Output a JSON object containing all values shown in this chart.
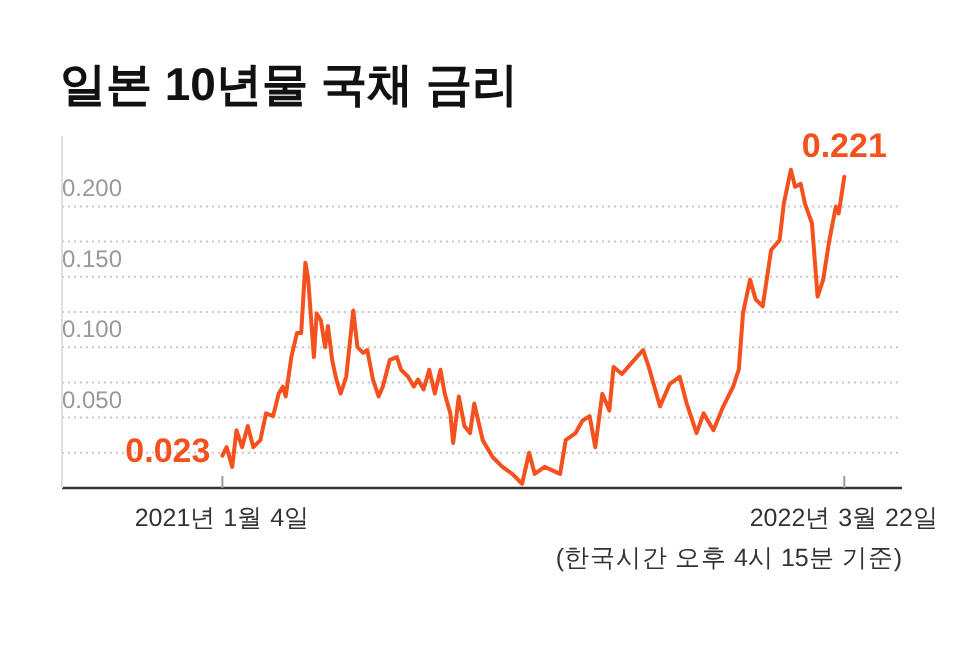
{
  "chart_data": {
    "type": "line",
    "title": "일본 10년물 국채 금리",
    "x": [
      "2021-01-04",
      "2021-01-07",
      "2021-01-11",
      "2021-01-14",
      "2021-01-18",
      "2021-01-22",
      "2021-01-26",
      "2021-01-31",
      "2021-02-04",
      "2021-02-09",
      "2021-02-13",
      "2021-02-16",
      "2021-02-18",
      "2021-02-22",
      "2021-02-26",
      "2021-03-01",
      "2021-03-04",
      "2021-03-06",
      "2021-03-10",
      "2021-03-12",
      "2021-03-15",
      "2021-03-18",
      "2021-03-20",
      "2021-03-23",
      "2021-03-26",
      "2021-03-29",
      "2021-04-02",
      "2021-04-07",
      "2021-04-10",
      "2021-04-14",
      "2021-04-17",
      "2021-04-21",
      "2021-04-25",
      "2021-04-28",
      "2021-05-03",
      "2021-05-08",
      "2021-05-11",
      "2021-05-16",
      "2021-05-20",
      "2021-05-23",
      "2021-05-27",
      "2021-05-31",
      "2021-06-04",
      "2021-06-08",
      "2021-06-11",
      "2021-06-15",
      "2021-06-17",
      "2021-06-21",
      "2021-06-25",
      "2021-06-29",
      "2021-07-02",
      "2021-07-08",
      "2021-07-15",
      "2021-07-22",
      "2021-07-29",
      "2021-08-05",
      "2021-08-10",
      "2021-08-14",
      "2021-08-21",
      "2021-09-01",
      "2021-09-05",
      "2021-09-12",
      "2021-09-17",
      "2021-09-22",
      "2021-09-26",
      "2021-10-01",
      "2021-10-06",
      "2021-10-09",
      "2021-10-15",
      "2021-10-22",
      "2021-10-30",
      "2021-11-03",
      "2021-11-11",
      "2021-11-18",
      "2021-11-25",
      "2021-11-30",
      "2021-12-07",
      "2021-12-12",
      "2021-12-19",
      "2021-12-26",
      "2022-01-02",
      "2022-01-06",
      "2022-01-09",
      "2022-01-14",
      "2022-01-18",
      "2022-01-23",
      "2022-01-29",
      "2022-02-04",
      "2022-02-07",
      "2022-02-12",
      "2022-02-15",
      "2022-02-19",
      "2022-02-22",
      "2022-02-27",
      "2022-03-03",
      "2022-03-07",
      "2022-03-11",
      "2022-03-16",
      "2022-03-18",
      "2022-03-22"
    ],
    "series": [
      {
        "color": "#f4511e",
        "values": [
          0.023,
          0.029,
          0.015,
          0.041,
          0.029,
          0.044,
          0.029,
          0.034,
          0.053,
          0.051,
          0.067,
          0.072,
          0.065,
          0.093,
          0.11,
          0.11,
          0.16,
          0.148,
          0.093,
          0.124,
          0.119,
          0.1,
          0.115,
          0.091,
          0.077,
          0.067,
          0.079,
          0.126,
          0.1,
          0.096,
          0.098,
          0.077,
          0.065,
          0.072,
          0.091,
          0.093,
          0.084,
          0.079,
          0.072,
          0.077,
          0.07,
          0.084,
          0.067,
          0.084,
          0.067,
          0.053,
          0.032,
          0.065,
          0.044,
          0.039,
          0.06,
          0.034,
          0.022,
          0.015,
          0.01,
          0.003,
          0.025,
          0.01,
          0.015,
          0.01,
          0.034,
          0.039,
          0.048,
          0.051,
          0.029,
          0.067,
          0.055,
          0.086,
          0.081,
          0.089,
          0.098,
          0.086,
          0.058,
          0.074,
          0.079,
          0.06,
          0.039,
          0.053,
          0.041,
          0.058,
          0.072,
          0.084,
          0.124,
          0.148,
          0.134,
          0.129,
          0.169,
          0.176,
          0.202,
          0.226,
          0.214,
          0.216,
          0.202,
          0.188,
          0.136,
          0.148,
          0.174,
          0.2,
          0.195,
          0.221
        ]
      }
    ],
    "xlim": [
      "2020-09-12",
      "2022-05-02"
    ],
    "xticks": [
      {
        "value": "2021-01-04",
        "label": "2021년 1월 4일"
      },
      {
        "value": "2022-03-22",
        "label": "2022년 3월 22일"
      }
    ],
    "ylim": [
      0,
      0.25
    ],
    "yticks": [
      {
        "value": 0.025,
        "label": null
      },
      {
        "value": 0.05,
        "label": "0.050"
      },
      {
        "value": 0.075,
        "label": null
      },
      {
        "value": 0.1,
        "label": "0.100"
      },
      {
        "value": 0.125,
        "label": null
      },
      {
        "value": 0.15,
        "label": "0.150"
      },
      {
        "value": 0.175,
        "label": null
      },
      {
        "value": 0.2,
        "label": "0.200"
      }
    ],
    "grid": "y",
    "marker": "none",
    "line_style": "solid",
    "annotations": [
      {
        "text": "0.023",
        "x": "2021-01-04",
        "y": 0.023
      },
      {
        "text": "0.221",
        "x": "2022-03-22",
        "y": 0.221
      },
      "(한국시간 오후 4시 15분 기준)"
    ]
  }
}
